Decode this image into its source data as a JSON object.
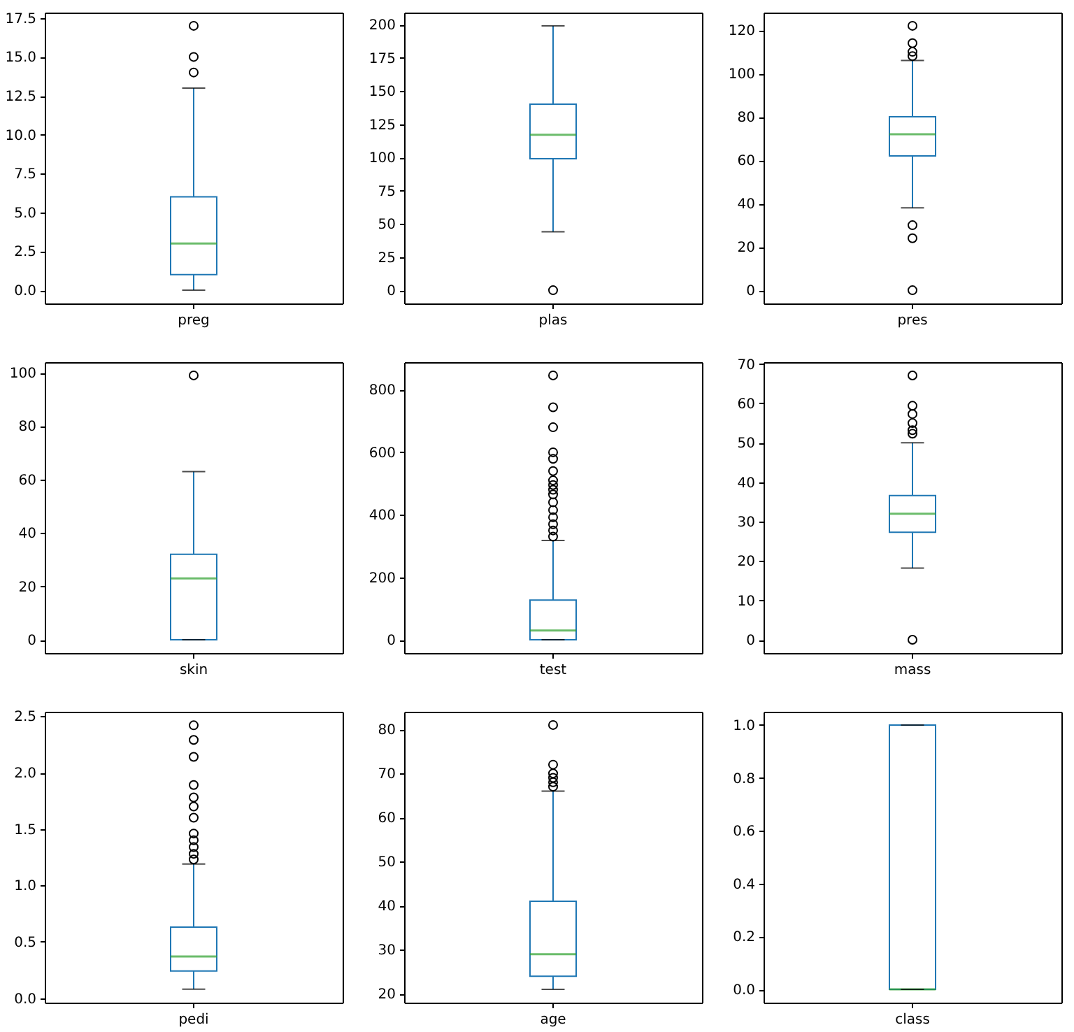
{
  "chart_data": [
    {
      "type": "box",
      "categories": [
        "preg"
      ],
      "color": "#1f77b4",
      "boxes": [
        {
          "low": 0,
          "q1": 1,
          "median": 3,
          "q3": 6,
          "high": 13,
          "outliers": [
            14,
            15,
            17
          ]
        }
      ],
      "ylim": [
        -0.85,
        17.85
      ],
      "yticks": [
        {
          "value": 0,
          "label": "0.0"
        },
        2.5,
        {
          "value": 5,
          "label": "5.0"
        },
        7.5,
        {
          "value": 10,
          "label": "10.0"
        },
        12.5,
        {
          "value": 15,
          "label": "15.0"
        },
        17.5
      ]
    },
    {
      "type": "box",
      "categories": [
        "plas"
      ],
      "color": "#1f77b4",
      "boxes": [
        {
          "low": 44,
          "q1": 99,
          "median": 117,
          "q3": 140,
          "high": 199,
          "outliers": [
            0
          ]
        }
      ],
      "ylim": [
        -9.95,
        208.95
      ],
      "yticks": [
        0,
        25,
        50,
        75,
        100,
        125,
        150,
        175,
        200
      ]
    },
    {
      "type": "box",
      "categories": [
        "pres"
      ],
      "color": "#1f77b4",
      "boxes": [
        {
          "low": 38,
          "q1": 62,
          "median": 72,
          "q3": 80,
          "high": 106,
          "outliers": [
            0,
            24,
            30,
            108,
            110,
            114,
            122
          ]
        }
      ],
      "ylim": [
        -6.1,
        128.1
      ],
      "yticks": [
        0,
        20,
        40,
        60,
        80,
        100,
        120
      ]
    },
    {
      "type": "box",
      "categories": [
        "skin"
      ],
      "color": "#1f77b4",
      "boxes": [
        {
          "low": 0,
          "q1": 0,
          "median": 23,
          "q3": 32,
          "high": 63,
          "outliers": [
            99
          ]
        }
      ],
      "ylim": [
        -4.95,
        103.95
      ],
      "yticks": [
        0,
        20,
        40,
        60,
        80,
        100
      ]
    },
    {
      "type": "box",
      "categories": [
        "test"
      ],
      "color": "#1f77b4",
      "boxes": [
        {
          "low": 0,
          "q1": 0,
          "median": 30,
          "q3": 127,
          "high": 318,
          "outliers": [
            330,
            350,
            370,
            392,
            415,
            440,
            465,
            480,
            495,
            510,
            540,
            579,
            600,
            680,
            744,
            846
          ]
        }
      ],
      "ylim": [
        -42.3,
        888.3
      ],
      "yticks": [
        0,
        200,
        400,
        600,
        800
      ]
    },
    {
      "type": "box",
      "categories": [
        "mass"
      ],
      "color": "#1f77b4",
      "boxes": [
        {
          "low": 18.2,
          "q1": 27.3,
          "median": 32,
          "q3": 36.6,
          "high": 50,
          "outliers": [
            0,
            52.3,
            53.2,
            55,
            57.3,
            59.4,
            67.1
          ]
        }
      ],
      "ylim": [
        -3.36,
        70.46
      ],
      "yticks": [
        0,
        10,
        20,
        30,
        40,
        50,
        60,
        70
      ]
    },
    {
      "type": "box",
      "categories": [
        "pedi"
      ],
      "color": "#1f77b4",
      "boxes": [
        {
          "low": 0.08,
          "q1": 0.24,
          "median": 0.37,
          "q3": 0.63,
          "high": 1.19,
          "outliers": [
            1.23,
            1.28,
            1.34,
            1.4,
            1.46,
            1.6,
            1.7,
            1.78,
            1.89,
            2.14,
            2.29,
            2.42
          ]
        }
      ],
      "ylim": [
        -0.04,
        2.54
      ],
      "yticks": [
        {
          "value": 0,
          "label": "0.0"
        },
        0.5,
        {
          "value": 1,
          "label": "1.0"
        },
        1.5,
        {
          "value": 2,
          "label": "2.0"
        },
        2.5
      ]
    },
    {
      "type": "box",
      "categories": [
        "age"
      ],
      "color": "#1f77b4",
      "boxes": [
        {
          "low": 21,
          "q1": 24,
          "median": 29,
          "q3": 41,
          "high": 66,
          "outliers": [
            67,
            68,
            69,
            70,
            72,
            81
          ]
        }
      ],
      "ylim": [
        18,
        84
      ],
      "yticks": [
        20,
        30,
        40,
        50,
        60,
        70,
        80
      ]
    },
    {
      "type": "box",
      "categories": [
        "class"
      ],
      "color": "#1f77b4",
      "boxes": [
        {
          "low": 0,
          "q1": 0,
          "median": 0,
          "q3": 1,
          "high": 1
        }
      ],
      "ylim": [
        -0.05,
        1.05
      ],
      "yticks": [
        {
          "value": 0,
          "label": "0.0"
        },
        0.2,
        0.4,
        0.6,
        0.8,
        {
          "value": 1,
          "label": "1.0"
        }
      ]
    }
  ]
}
